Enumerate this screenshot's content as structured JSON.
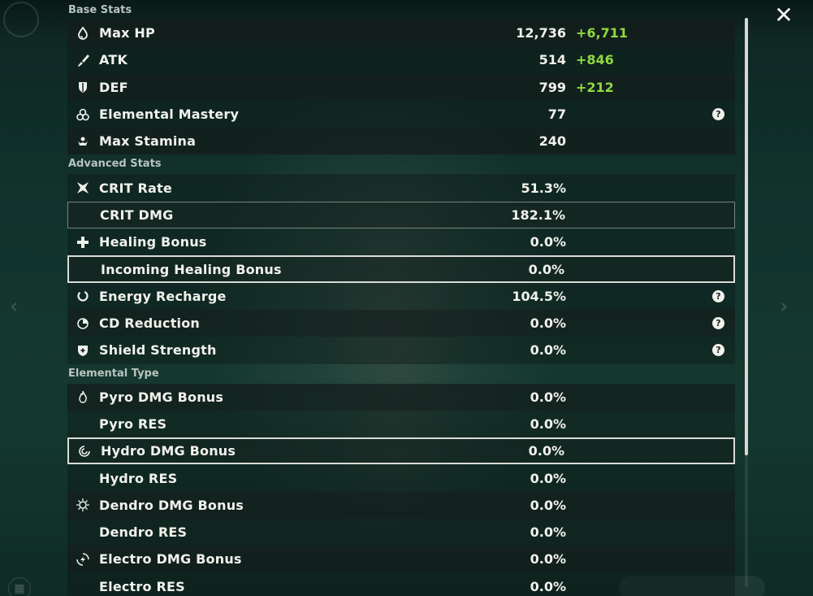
{
  "window": {
    "close_label": "✕"
  },
  "sections": {
    "base": "Base Stats",
    "advanced": "Advanced Stats",
    "elemental": "Elemental Type"
  },
  "base_stats": [
    {
      "name": "Max HP",
      "value": "12,736",
      "bonus": "+6,711",
      "icon": "hp-drop-icon"
    },
    {
      "name": "ATK",
      "value": "514",
      "bonus": "+846",
      "icon": "sword-icon"
    },
    {
      "name": "DEF",
      "value": "799",
      "bonus": "+212",
      "icon": "shield-icon"
    },
    {
      "name": "Elemental Mastery",
      "value": "77",
      "bonus": "",
      "icon": "elemental-mastery-icon",
      "help": "?"
    },
    {
      "name": "Max Stamina",
      "value": "240",
      "bonus": "",
      "icon": "stamina-icon"
    }
  ],
  "advanced_stats": [
    {
      "name": "CRIT Rate",
      "value": "51.3%",
      "icon": "crit-rate-icon"
    },
    {
      "name": "CRIT DMG",
      "value": "182.1%",
      "icon": ""
    },
    {
      "name": "Healing Bonus",
      "value": "0.0%",
      "icon": "healing-cross-icon"
    },
    {
      "name": "Incoming Healing Bonus",
      "value": "0.0%",
      "icon": ""
    },
    {
      "name": "Energy Recharge",
      "value": "104.5%",
      "icon": "energy-recharge-icon",
      "help": "?"
    },
    {
      "name": "CD Reduction",
      "value": "0.0%",
      "icon": "cd-reduction-icon",
      "help": "?"
    },
    {
      "name": "Shield Strength",
      "value": "0.0%",
      "icon": "shield-strength-icon",
      "help": "?"
    }
  ],
  "elemental_stats": [
    {
      "name": "Pyro DMG Bonus",
      "value": "0.0%",
      "icon": "pyro-icon"
    },
    {
      "name": "Pyro RES",
      "value": "0.0%",
      "icon": ""
    },
    {
      "name": "Hydro DMG Bonus",
      "value": "0.0%",
      "icon": "hydro-icon"
    },
    {
      "name": "Hydro RES",
      "value": "0.0%",
      "icon": ""
    },
    {
      "name": "Dendro DMG Bonus",
      "value": "0.0%",
      "icon": "dendro-icon"
    },
    {
      "name": "Dendro RES",
      "value": "0.0%",
      "icon": ""
    },
    {
      "name": "Electro DMG Bonus",
      "value": "0.0%",
      "icon": "electro-icon"
    },
    {
      "name": "Electro RES",
      "value": "0.0%",
      "icon": ""
    }
  ],
  "colors": {
    "bonus": "#8fda40",
    "text": "#f1f1ec",
    "background": "#12332d"
  }
}
